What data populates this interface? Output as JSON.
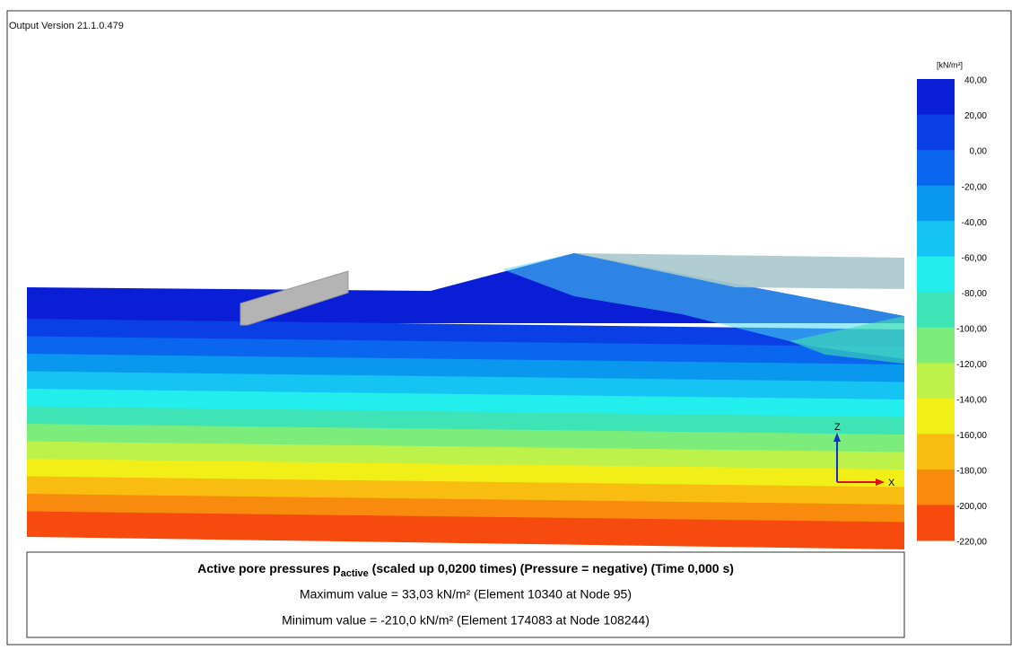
{
  "header": {
    "version": "Output Version 21.1.0.479"
  },
  "legend": {
    "unit": "[kN/m²]",
    "ticks": [
      "40,00",
      "20,00",
      "0,00",
      "-20,00",
      "-40,00",
      "-60,00",
      "-80,00",
      "-100,00",
      "-120,00",
      "-140,00",
      "-160,00",
      "-180,00",
      "-200,00",
      "-220,00"
    ],
    "colors": [
      "#0a1ed6",
      "#0a3fe6",
      "#0a66ee",
      "#0a98ee",
      "#16c4f4",
      "#22eeee",
      "#3ee4b6",
      "#7ced7a",
      "#bdf24a",
      "#f2ee18",
      "#f8bd10",
      "#f88a0e",
      "#f64a0e",
      "#ee0e0e"
    ]
  },
  "axes": {
    "z": "Z",
    "x": "X"
  },
  "caption": {
    "title_main": "Active pore pressures p",
    "title_sub": "active",
    "title_rest": " (scaled up 0,0200 times) (Pressure = negative) (Time 0,000 s)",
    "max": "Maximum value = 33,03 kN/m² (Element 10340 at Node 95)",
    "min": "Minimum value = -210,0 kN/m² (Element 174083 at Node 108244)"
  }
}
